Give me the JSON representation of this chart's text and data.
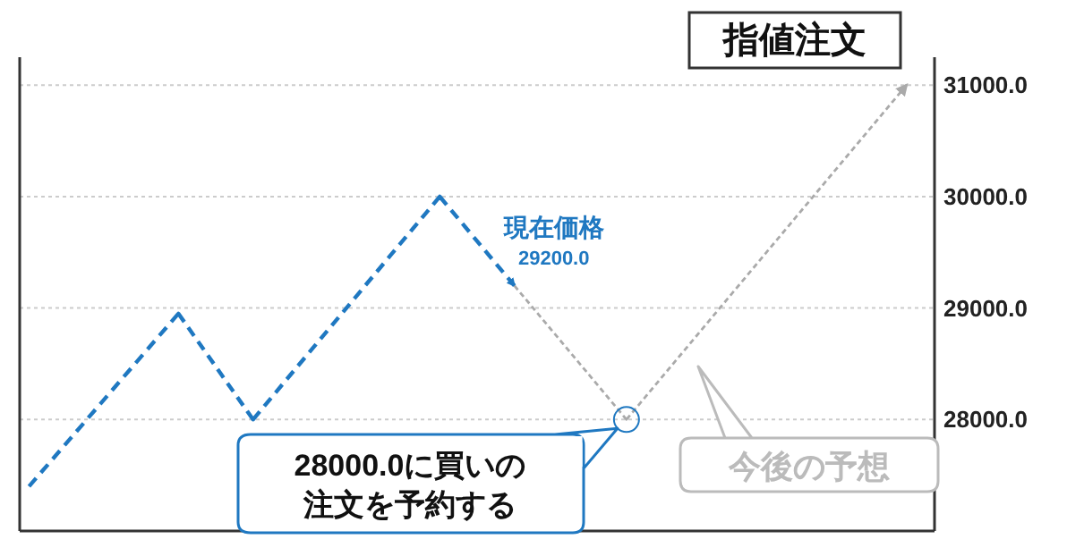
{
  "chart_data": {
    "type": "line",
    "title": "指値注文",
    "categories": [
      null,
      null,
      null,
      null,
      null,
      null,
      null,
      null,
      null,
      null,
      null,
      null,
      null,
      null,
      null,
      null,
      null,
      null,
      null,
      null,
      null,
      null,
      null,
      null,
      null,
      null,
      null,
      null,
      null,
      null,
      null,
      null,
      null,
      null,
      null,
      null,
      null,
      null,
      null,
      null,
      null,
      null,
      null,
      null,
      null,
      null,
      null,
      null,
      null
    ],
    "ylim": [
      27000,
      31250
    ],
    "yticks": [
      {
        "value": 28000,
        "label": "28000.0"
      },
      {
        "value": 29000,
        "label": "29000.0"
      },
      {
        "value": 30000,
        "label": "30000.0"
      },
      {
        "value": 31000,
        "label": "31000.0"
      }
    ],
    "tick_labels": "y",
    "grid": "y",
    "marker": "none",
    "series": [
      {
        "color": "#1f78c1",
        "line_style": "dashed",
        "values": [
          27400,
          null,
          null,
          null,
          null,
          null,
          null,
          null,
          28950,
          null,
          null,
          null,
          28000,
          null,
          null,
          null,
          null,
          null,
          null,
          null,
          null,
          null,
          30000,
          null,
          null,
          null,
          29200,
          null,
          null,
          null,
          null,
          null,
          null,
          null,
          null,
          null,
          null,
          null,
          null,
          null,
          null,
          null,
          null,
          null,
          null,
          null,
          null,
          null,
          null
        ],
        "value_labels": [
          null,
          null,
          null,
          null,
          null,
          null,
          null,
          null,
          null,
          null,
          null,
          null,
          null,
          null,
          null,
          null,
          null,
          null,
          null,
          null,
          null,
          null,
          null,
          null,
          null,
          null,
          "29200.0",
          null,
          null,
          null,
          null,
          null,
          null,
          null,
          null,
          null,
          null,
          null,
          null,
          null,
          null,
          null,
          null,
          null,
          null,
          null,
          null,
          null,
          null
        ]
      },
      {
        "color": "#aaaaaa",
        "line_style": "dotted",
        "values": [
          null,
          null,
          null,
          null,
          null,
          null,
          null,
          null,
          null,
          null,
          null,
          null,
          null,
          null,
          null,
          null,
          null,
          null,
          null,
          null,
          null,
          null,
          null,
          null,
          null,
          null,
          29200,
          null,
          null,
          null,
          null,
          null,
          28000,
          null,
          null,
          null,
          null,
          null,
          null,
          null,
          null,
          null,
          null,
          null,
          null,
          null,
          null,
          31000,
          null
        ]
      }
    ],
    "annotations": [
      "現在価格",
      "28000.0に買いの注文を予約する",
      "今後の予想"
    ]
  }
}
